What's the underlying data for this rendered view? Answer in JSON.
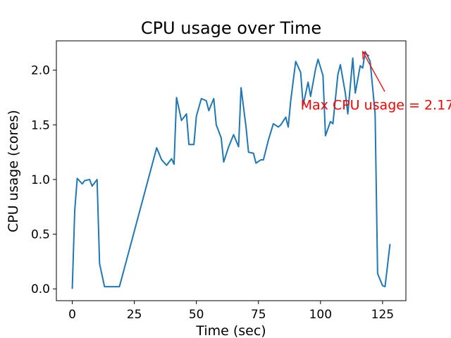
{
  "chart_data": {
    "type": "line",
    "title": "CPU usage over Time",
    "xlabel": "Time (sec)",
    "ylabel": "CPU usage (cores)",
    "xlim": [
      -6.4,
      134.4
    ],
    "ylim": [
      -0.108,
      2.268
    ],
    "xticks": [
      0,
      25,
      50,
      75,
      100,
      125
    ],
    "yticks": [
      0.0,
      0.5,
      1.0,
      1.5,
      2.0
    ],
    "xtick_labels": [
      "0",
      "25",
      "50",
      "75",
      "100",
      "125"
    ],
    "ytick_labels": [
      "0.0",
      "0.5",
      "1.0",
      "1.5",
      "2.0"
    ],
    "grid": false,
    "series": [
      {
        "color": "#1f77b4",
        "x": [
          0,
          1,
          2,
          4,
          5,
          7,
          8,
          10,
          11,
          13,
          14,
          16,
          19,
          34,
          36,
          38,
          40,
          41,
          42,
          44,
          46,
          47,
          49,
          50,
          52,
          54,
          55,
          57,
          58,
          60,
          61,
          63,
          65,
          67,
          68,
          70,
          71,
          73,
          74,
          76,
          77,
          79,
          81,
          83,
          84,
          86,
          87,
          88,
          90,
          92,
          93,
          95,
          96,
          98,
          99,
          101,
          102,
          104,
          105,
          107,
          108,
          110,
          111,
          113,
          114,
          116,
          117,
          118,
          120,
          122,
          123,
          125,
          126,
          128
        ],
        "y": [
          0.0,
          0.72,
          1.01,
          0.96,
          0.99,
          1.0,
          0.94,
          1.0,
          0.23,
          0.02,
          0.02,
          0.02,
          0.02,
          1.29,
          1.18,
          1.13,
          1.19,
          1.14,
          1.75,
          1.54,
          1.6,
          1.32,
          1.32,
          1.58,
          1.74,
          1.72,
          1.63,
          1.74,
          1.5,
          1.38,
          1.16,
          1.3,
          1.41,
          1.3,
          1.84,
          1.48,
          1.25,
          1.24,
          1.15,
          1.18,
          1.18,
          1.36,
          1.51,
          1.48,
          1.5,
          1.57,
          1.48,
          1.72,
          2.08,
          1.98,
          1.68,
          1.89,
          1.76,
          2.01,
          2.1,
          1.95,
          1.4,
          1.53,
          1.51,
          1.96,
          2.05,
          1.79,
          1.6,
          2.11,
          1.79,
          2.04,
          2.02,
          2.17,
          2.08,
          1.6,
          0.14,
          0.03,
          0.02,
          0.41
        ]
      }
    ],
    "annotation": {
      "text": "Max CPU usage = 2.17",
      "color": "#ff0000",
      "arrow_to": [
        117,
        2.17
      ],
      "text_at": [
        92,
        1.64
      ]
    }
  }
}
